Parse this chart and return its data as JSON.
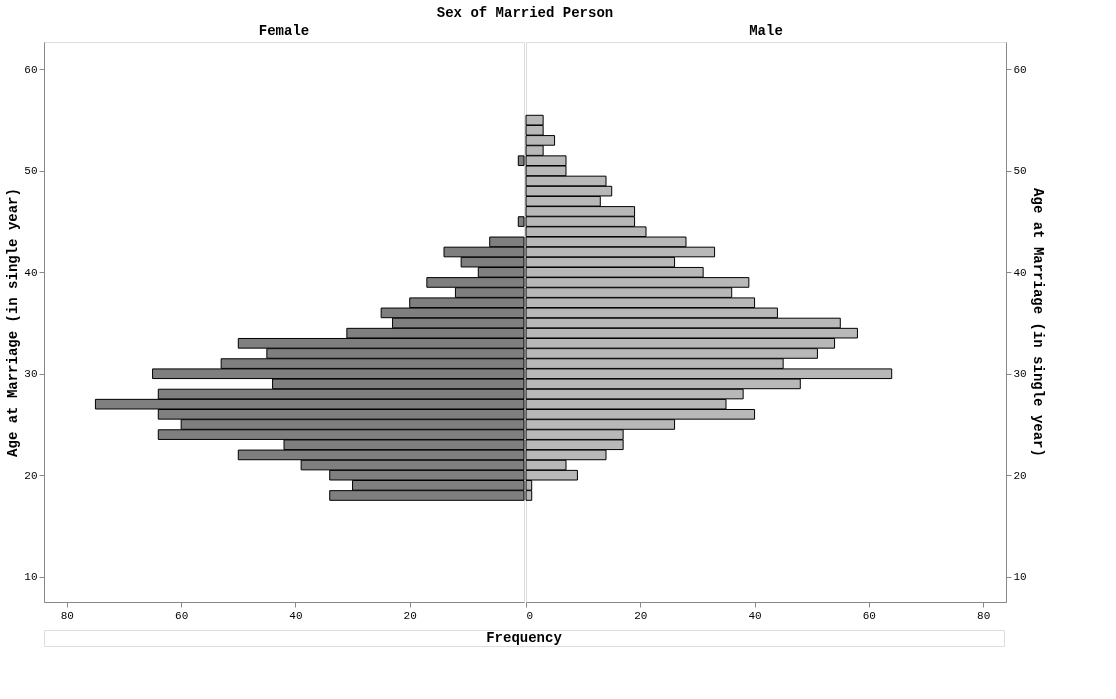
{
  "chart_data": [
    {
      "type": "bar",
      "orientation": "horizontal",
      "title": "Sex of Married Person",
      "subtitle": "Female",
      "xlabel": "Frequency",
      "ylabel": "Age at Marriage (in single year)",
      "x": [
        18,
        19,
        20,
        21,
        22,
        23,
        24,
        25,
        26,
        27,
        28,
        29,
        30,
        31,
        32,
        33,
        34,
        35,
        36,
        37,
        38,
        39,
        40,
        41,
        42,
        43,
        44,
        45,
        46,
        47,
        48,
        49,
        50,
        51
      ],
      "series": [
        {
          "color": "#7f7f7f",
          "values": [
            34,
            30,
            34,
            39,
            50,
            42,
            64,
            60,
            64,
            75,
            64,
            44,
            65,
            53,
            45,
            50,
            31,
            23,
            25,
            20,
            12,
            17,
            8,
            11,
            14,
            6,
            null,
            1,
            null,
            null,
            null,
            null,
            null,
            1
          ]
        }
      ],
      "xlim": [
        84,
        0
      ],
      "xticks": [
        80,
        60,
        40,
        20
      ],
      "ylim": [
        7.5,
        62.7
      ],
      "yticks": [
        10,
        20,
        30,
        40,
        50,
        60
      ],
      "grid": false
    },
    {
      "type": "bar",
      "orientation": "horizontal",
      "subtitle": "Male",
      "ylabel": "Age at Marriage (in single year)",
      "x": [
        18,
        19,
        20,
        21,
        22,
        23,
        24,
        25,
        26,
        27,
        28,
        29,
        30,
        31,
        32,
        33,
        34,
        35,
        36,
        37,
        38,
        39,
        40,
        41,
        42,
        43,
        44,
        45,
        46,
        47,
        48,
        49,
        50,
        51,
        52,
        53,
        54,
        55
      ],
      "series": [
        {
          "color": "#b8b8b8",
          "values": [
            1,
            1,
            9,
            7,
            14,
            17,
            17,
            26,
            40,
            35,
            38,
            48,
            64,
            45,
            51,
            54,
            58,
            55,
            44,
            40,
            36,
            39,
            31,
            26,
            33,
            28,
            21,
            19,
            19,
            13,
            15,
            14,
            7,
            7,
            3,
            5,
            3,
            3
          ]
        }
      ],
      "xlim": [
        0,
        84
      ],
      "xticks": [
        0,
        20,
        40,
        60,
        80
      ],
      "ylim": [
        7.5,
        62.7
      ],
      "yticks": [
        10,
        20,
        30,
        40,
        50,
        60
      ],
      "grid": false
    }
  ]
}
